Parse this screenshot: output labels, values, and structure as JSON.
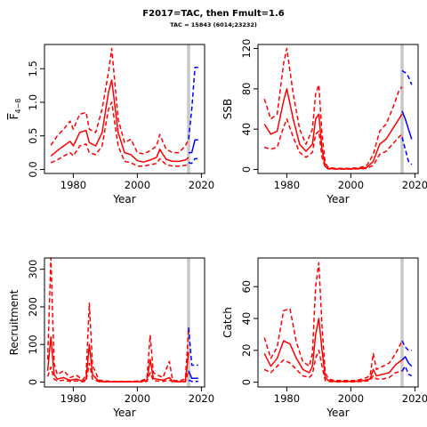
{
  "header": {
    "title": "F2017=TAC, then Fmult=1.6",
    "subtitle": "TAC = 15843 (6014;23232)"
  },
  "colors": {
    "history": "#ff0000",
    "forecast": "#0000ff",
    "divider": "#c8c8c8",
    "axis": "#000000"
  },
  "chart_data": [
    {
      "type": "line",
      "xlabel": "Year",
      "ylabel": "F̅4−8",
      "ylabel_main": "F",
      "ylabel_sub": "4−8",
      "xlim": [
        1971,
        2021
      ],
      "ylim": [
        -0.06,
        1.86
      ],
      "xticks": [
        1980,
        2000,
        2020
      ],
      "yticks": [
        0.0,
        0.5,
        1.0,
        1.5
      ],
      "ytick_labels": [
        "0.0",
        "0.5",
        "1.0",
        "1.5"
      ],
      "divider_x": 2016,
      "series": [
        {
          "role": "history",
          "style": "solid",
          "x": [
            1973,
            1975,
            1977,
            1979,
            1980,
            1982,
            1984,
            1985,
            1987,
            1989,
            1991,
            1992,
            1994,
            1996,
            1998,
            2000,
            2002,
            2004,
            2006,
            2007,
            2009,
            2011,
            2013,
            2015,
            2016
          ],
          "y": [
            0.2,
            0.28,
            0.35,
            0.42,
            0.35,
            0.55,
            0.58,
            0.4,
            0.35,
            0.55,
            1.15,
            1.33,
            0.55,
            0.25,
            0.22,
            0.13,
            0.11,
            0.14,
            0.18,
            0.3,
            0.15,
            0.12,
            0.12,
            0.14,
            0.18
          ]
        },
        {
          "role": "history",
          "style": "dashed",
          "x": [
            1973,
            1975,
            1977,
            1979,
            1980,
            1982,
            1984,
            1985,
            1987,
            1989,
            1991,
            1992,
            1994,
            1996,
            1998,
            2000,
            2002,
            2004,
            2006,
            2007,
            2009,
            2011,
            2013,
            2015,
            2016
          ],
          "y": [
            0.36,
            0.5,
            0.6,
            0.72,
            0.6,
            0.82,
            0.85,
            0.6,
            0.55,
            0.9,
            1.45,
            1.8,
            0.75,
            0.4,
            0.45,
            0.25,
            0.23,
            0.28,
            0.35,
            0.52,
            0.3,
            0.25,
            0.25,
            0.35,
            0.45
          ]
        },
        {
          "role": "history",
          "style": "dashed",
          "x": [
            1973,
            1975,
            1977,
            1979,
            1980,
            1982,
            1984,
            1985,
            1987,
            1989,
            1991,
            1992,
            1994,
            1996,
            1998,
            2000,
            2002,
            2004,
            2006,
            2007,
            2009,
            2011,
            2013,
            2015,
            2016
          ],
          "y": [
            0.1,
            0.14,
            0.2,
            0.25,
            0.2,
            0.35,
            0.38,
            0.25,
            0.22,
            0.35,
            0.9,
            1.0,
            0.35,
            0.12,
            0.1,
            0.05,
            0.05,
            0.07,
            0.09,
            0.16,
            0.07,
            0.05,
            0.05,
            0.06,
            0.08
          ]
        },
        {
          "role": "forecast",
          "style": "solid",
          "x": [
            2016,
            2017,
            2018,
            2019
          ],
          "y": [
            0.25,
            0.25,
            0.44,
            0.44
          ]
        },
        {
          "role": "forecast",
          "style": "dashed",
          "x": [
            2016,
            2017,
            2018,
            2019
          ],
          "y": [
            0.45,
            0.9,
            1.52,
            1.52
          ]
        },
        {
          "role": "forecast",
          "style": "dashed",
          "x": [
            2016,
            2017,
            2018,
            2019
          ],
          "y": [
            0.1,
            0.09,
            0.16,
            0.16
          ]
        }
      ]
    },
    {
      "type": "line",
      "xlabel": "Year",
      "ylabel": "SSB",
      "xlim": [
        1971,
        2021
      ],
      "ylim": [
        -4,
        124
      ],
      "xticks": [
        1980,
        2000,
        2020
      ],
      "yticks": [
        0,
        40,
        80,
        120
      ],
      "ytick_labels": [
        "0",
        "40",
        "80",
        "120"
      ],
      "divider_x": 2016,
      "series": [
        {
          "role": "history",
          "style": "solid",
          "x": [
            1973,
            1975,
            1977,
            1979,
            1980,
            1982,
            1984,
            1986,
            1988,
            1989,
            1990,
            1991,
            1992,
            1993,
            1995,
            1997,
            2000,
            2003,
            2005,
            2007,
            2009,
            2011,
            2013,
            2015,
            2016
          ],
          "y": [
            45,
            35,
            38,
            68,
            80,
            50,
            25,
            18,
            25,
            50,
            55,
            20,
            3,
            1,
            0.5,
            0.5,
            0.5,
            1,
            2,
            8,
            25,
            30,
            40,
            50,
            55
          ]
        },
        {
          "role": "history",
          "style": "dashed",
          "x": [
            1973,
            1975,
            1977,
            1979,
            1980,
            1982,
            1984,
            1986,
            1988,
            1989,
            1990,
            1991,
            1992,
            1993,
            1995,
            1997,
            2000,
            2003,
            2005,
            2007,
            2009,
            2011,
            2013,
            2015,
            2016
          ],
          "y": [
            70,
            50,
            55,
            105,
            120,
            75,
            40,
            25,
            40,
            75,
            84,
            35,
            6,
            2,
            1,
            1,
            1,
            2,
            4,
            15,
            38,
            45,
            60,
            78,
            82
          ]
        },
        {
          "role": "history",
          "style": "dashed",
          "x": [
            1973,
            1975,
            1977,
            1979,
            1980,
            1982,
            1984,
            1986,
            1988,
            1989,
            1990,
            1991,
            1992,
            1993,
            1995,
            1997,
            2000,
            2003,
            2005,
            2007,
            2009,
            2011,
            2013,
            2015,
            2016
          ],
          "y": [
            22,
            20,
            22,
            42,
            50,
            32,
            17,
            12,
            17,
            35,
            38,
            12,
            2,
            0.5,
            0.3,
            0.3,
            0.3,
            0.5,
            1,
            4,
            15,
            18,
            25,
            32,
            35
          ]
        },
        {
          "role": "forecast",
          "style": "solid",
          "x": [
            2016,
            2017,
            2018,
            2019
          ],
          "y": [
            58,
            50,
            40,
            30
          ]
        },
        {
          "role": "forecast",
          "style": "dashed",
          "x": [
            2016,
            2017,
            2018,
            2019
          ],
          "y": [
            98,
            96,
            92,
            84
          ]
        },
        {
          "role": "forecast",
          "style": "dashed",
          "x": [
            2016,
            2017,
            2018,
            2019
          ],
          "y": [
            32,
            20,
            8,
            5
          ]
        }
      ]
    },
    {
      "type": "line",
      "xlabel": "Year",
      "ylabel": "Recruitment",
      "xlim": [
        1971,
        2021
      ],
      "ylim": [
        -13,
        330
      ],
      "xticks": [
        1980,
        2000,
        2020
      ],
      "yticks": [
        0,
        100,
        200,
        300
      ],
      "ytick_labels": [
        "0",
        "100",
        "200",
        "300"
      ],
      "divider_x": 2016,
      "series": [
        {
          "role": "history",
          "style": "solid",
          "x": [
            1972,
            1973,
            1974,
            1975,
            1977,
            1979,
            1981,
            1983,
            1984,
            1985,
            1986,
            1988,
            1990,
            1992,
            1995,
            1998,
            2001,
            2003,
            2004,
            2005,
            2006,
            2008,
            2010,
            2011,
            2013,
            2015,
            2016
          ],
          "y": [
            30,
            120,
            20,
            8,
            12,
            5,
            8,
            2,
            8,
            100,
            20,
            2,
            1,
            1,
            1,
            1,
            1,
            4,
            60,
            10,
            8,
            5,
            12,
            2,
            1,
            2,
            80
          ]
        },
        {
          "role": "history",
          "style": "dashed",
          "x": [
            1972,
            1973,
            1974,
            1975,
            1977,
            1979,
            1981,
            1983,
            1984,
            1985,
            1986,
            1988,
            1990,
            1992,
            1995,
            1998,
            2001,
            2003,
            2004,
            2005,
            2006,
            2008,
            2010,
            2011,
            2013,
            2015,
            2016
          ],
          "y": [
            60,
            330,
            50,
            20,
            30,
            12,
            18,
            6,
            20,
            210,
            45,
            5,
            3,
            2,
            2,
            2,
            3,
            10,
            125,
            25,
            20,
            12,
            55,
            5,
            3,
            8,
            140
          ]
        },
        {
          "role": "history",
          "style": "dashed",
          "x": [
            1972,
            1973,
            1974,
            1975,
            1977,
            1979,
            1981,
            1983,
            1984,
            1985,
            1986,
            1988,
            1990,
            1992,
            1995,
            1998,
            2001,
            2003,
            2004,
            2005,
            2006,
            2008,
            2010,
            2011,
            2013,
            2015,
            2016
          ],
          "y": [
            15,
            40,
            8,
            3,
            5,
            2,
            3,
            1,
            3,
            50,
            8,
            1,
            0.5,
            0.5,
            0.5,
            0.5,
            0.5,
            2,
            25,
            4,
            3,
            2,
            5,
            1,
            0.5,
            1,
            30
          ]
        },
        {
          "role": "forecast",
          "style": "solid",
          "x": [
            2016,
            2017,
            2018,
            2019
          ],
          "y": [
            30,
            10,
            10,
            10
          ]
        },
        {
          "role": "forecast",
          "style": "dashed",
          "x": [
            2016,
            2017,
            2018,
            2019
          ],
          "y": [
            145,
            45,
            45,
            45
          ]
        },
        {
          "role": "forecast",
          "style": "dashed",
          "x": [
            2016,
            2017,
            2018,
            2019
          ],
          "y": [
            5,
            2,
            2,
            2
          ]
        }
      ]
    },
    {
      "type": "line",
      "xlabel": "Year",
      "ylabel": "Catch",
      "xlim": [
        1971,
        2021
      ],
      "ylim": [
        -3,
        78
      ],
      "xticks": [
        1980,
        2000,
        2020
      ],
      "yticks": [
        0,
        20,
        40,
        60
      ],
      "ytick_labels": [
        "0",
        "20",
        "40",
        "60"
      ],
      "divider_x": 2016,
      "series": [
        {
          "role": "history",
          "style": "solid",
          "x": [
            1973,
            1975,
            1977,
            1979,
            1981,
            1983,
            1985,
            1987,
            1988,
            1989,
            1990,
            1991,
            1992,
            1993,
            1995,
            1998,
            2001,
            2004,
            2006,
            2007,
            2008,
            2010,
            2012,
            2014,
            2016
          ],
          "y": [
            18,
            10,
            15,
            26,
            24,
            15,
            8,
            6,
            10,
            30,
            40,
            20,
            3,
            1,
            0.5,
            0.5,
            0.5,
            1,
            2,
            8,
            4,
            5,
            6,
            11,
            14
          ]
        },
        {
          "role": "history",
          "style": "dashed",
          "x": [
            1973,
            1975,
            1977,
            1979,
            1981,
            1983,
            1985,
            1987,
            1988,
            1989,
            1990,
            1991,
            1992,
            1993,
            1995,
            1998,
            2001,
            2004,
            2006,
            2007,
            2008,
            2010,
            2012,
            2014,
            2016
          ],
          "y": [
            28,
            15,
            22,
            45,
            46,
            25,
            13,
            10,
            18,
            60,
            75,
            35,
            6,
            2,
            1,
            1,
            1,
            2,
            4,
            18,
            8,
            10,
            12,
            18,
            26
          ]
        },
        {
          "role": "history",
          "style": "dashed",
          "x": [
            1973,
            1975,
            1977,
            1979,
            1981,
            1983,
            1985,
            1987,
            1988,
            1989,
            1990,
            1991,
            1992,
            1993,
            1995,
            1998,
            2001,
            2004,
            2006,
            2007,
            2008,
            2010,
            2012,
            2014,
            2016
          ],
          "y": [
            8,
            6,
            10,
            14,
            12,
            8,
            4,
            3,
            5,
            15,
            20,
            10,
            1,
            0.5,
            0.2,
            0.2,
            0.2,
            0.5,
            1,
            4,
            2,
            2,
            3,
            6,
            7
          ]
        },
        {
          "role": "forecast",
          "style": "solid",
          "x": [
            2016,
            2017,
            2018,
            2019
          ],
          "y": [
            14,
            16,
            12,
            10
          ]
        },
        {
          "role": "forecast",
          "style": "dashed",
          "x": [
            2016,
            2017,
            2018,
            2019
          ],
          "y": [
            26,
            22,
            20,
            20
          ]
        },
        {
          "role": "forecast",
          "style": "dashed",
          "x": [
            2016,
            2017,
            2018,
            2019
          ],
          "y": [
            7,
            10,
            5,
            4
          ]
        }
      ]
    }
  ]
}
